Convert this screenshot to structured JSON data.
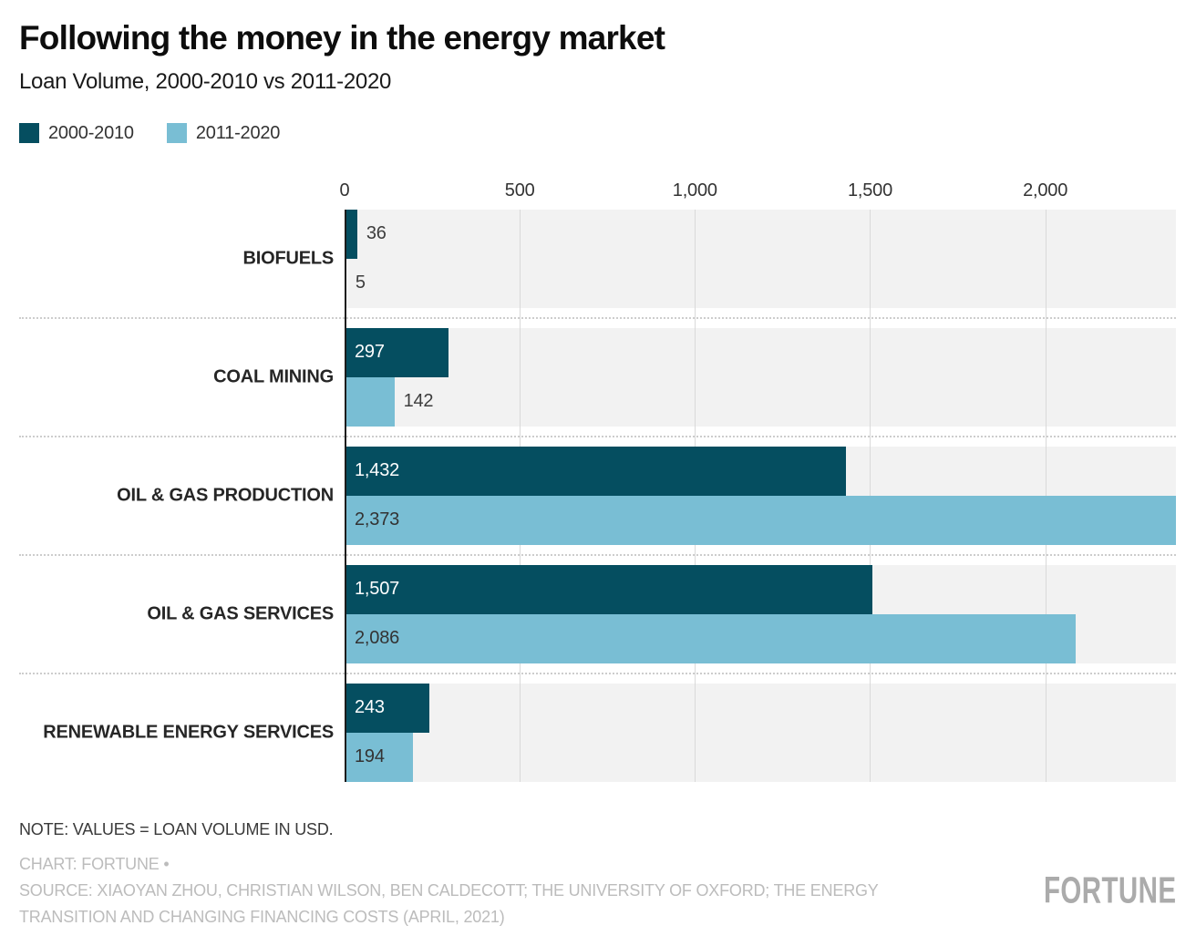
{
  "title": "Following the money in the energy market",
  "subtitle": "Loan Volume, 2000-2010 vs 2011-2020",
  "legend": {
    "items": [
      {
        "label": "2000-2010",
        "color": "#054E60"
      },
      {
        "label": "2011-2020",
        "color": "#79BED4"
      }
    ]
  },
  "chart_data": {
    "type": "bar",
    "orientation": "horizontal",
    "title": "Following the money in the energy market",
    "subtitle": "Loan Volume, 2000-2010 vs 2011-2020",
    "categories": [
      "BIOFUELS",
      "COAL MINING",
      "OIL & GAS PRODUCTION",
      "OIL & GAS SERVICES",
      "RENEWABLE ENERGY SERVICES"
    ],
    "series": [
      {
        "name": "2000-2010",
        "color": "#054E60",
        "values": [
          36,
          297,
          1432,
          1507,
          243
        ]
      },
      {
        "name": "2011-2020",
        "color": "#79BED4",
        "values": [
          5,
          142,
          2373,
          2086,
          194
        ]
      }
    ],
    "value_labels": [
      [
        "36",
        "297",
        "1,432",
        "1,507",
        "243"
      ],
      [
        "5",
        "142",
        "2,373",
        "2,086",
        "194"
      ]
    ],
    "xlim": [
      0,
      2373
    ],
    "xticks": [
      {
        "value": 0,
        "label": "0"
      },
      {
        "value": 500,
        "label": "500"
      },
      {
        "value": 1000,
        "label": "1,000"
      },
      {
        "value": 1500,
        "label": "1,500"
      },
      {
        "value": 2000,
        "label": "2,000"
      }
    ],
    "grid": true,
    "legend_position": "top-left",
    "track_color": "#f2f2f2",
    "gridline_color": "#d9d9d9",
    "note": "VALUES = LOAN VOLUME IN USD."
  },
  "footer": {
    "note": "NOTE: VALUES = LOAN VOLUME IN USD.",
    "credit": "CHART: FORTUNE •",
    "source": "SOURCE: XIAOYAN ZHOU, CHRISTIAN WILSON, BEN CALDECOTT; THE UNIVERSITY OF OXFORD; THE ENERGY TRANSITION AND CHANGING FINANCING COSTS (APRIL, 2021)",
    "logo": "FORTUNE"
  }
}
